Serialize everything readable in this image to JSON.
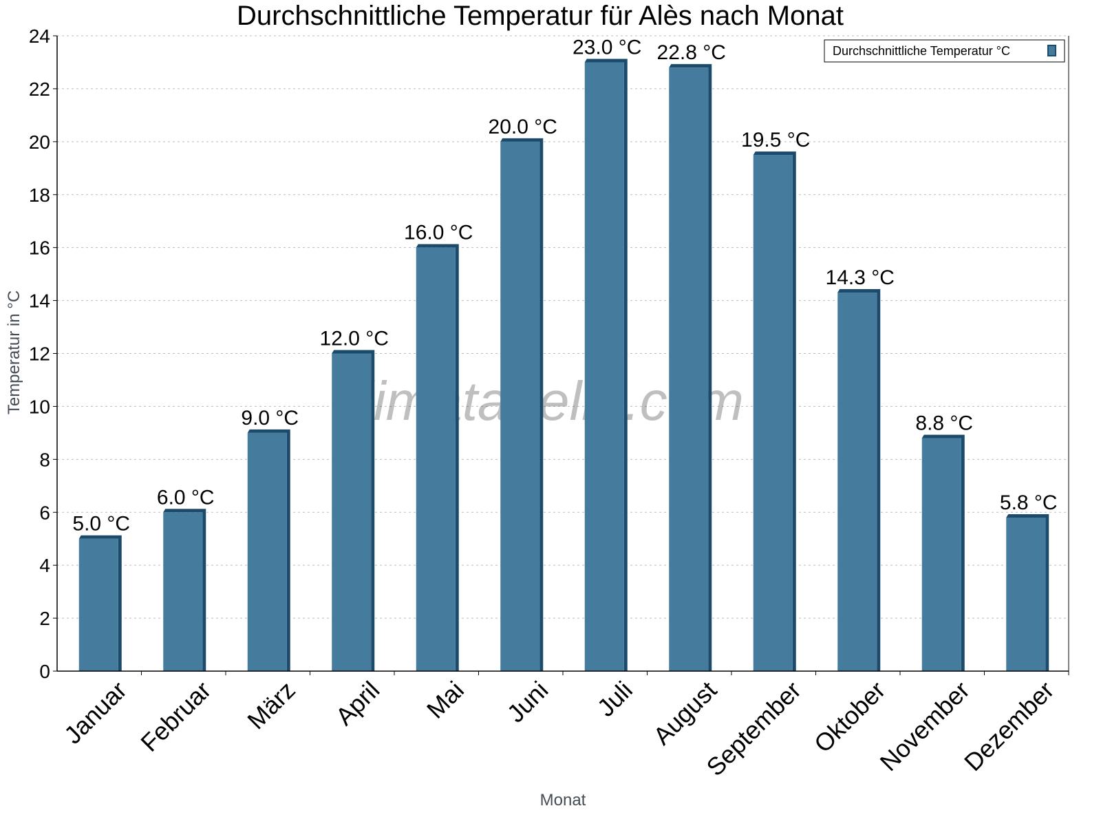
{
  "chart_data": {
    "type": "bar",
    "title": "Durchschnittliche Temperatur für Alès nach Monat",
    "xlabel": "Monat",
    "ylabel": "Temperatur in °C",
    "categories": [
      "Januar",
      "Februar",
      "März",
      "April",
      "Mai",
      "Juni",
      "Juli",
      "August",
      "September",
      "Oktober",
      "November",
      "Dezember"
    ],
    "series": [
      {
        "name": "Durchschnittliche Temperatur °C",
        "values": [
          5.0,
          6.0,
          9.0,
          12.0,
          16.0,
          20.0,
          23.0,
          22.8,
          19.5,
          14.3,
          8.8,
          5.8
        ]
      }
    ],
    "data_labels": [
      "5.0 °C",
      "6.0 °C",
      "9.0 °C",
      "12.0 °C",
      "16.0 °C",
      "20.0 °C",
      "23.0 °C",
      "22.8 °C",
      "19.5 °C",
      "14.3 °C",
      "8.8 °C",
      "5.8 °C"
    ],
    "ylim": [
      0,
      24
    ],
    "yticks": [
      "0",
      "2",
      "4",
      "6",
      "8",
      "10",
      "12",
      "14",
      "16",
      "18",
      "20",
      "22",
      "24"
    ],
    "grid": true,
    "legend_position": "top-right",
    "colors": {
      "bar_front": "#457b9d",
      "bar_side": "#1b4a6b"
    },
    "watermark": "klimatabelle.com"
  }
}
